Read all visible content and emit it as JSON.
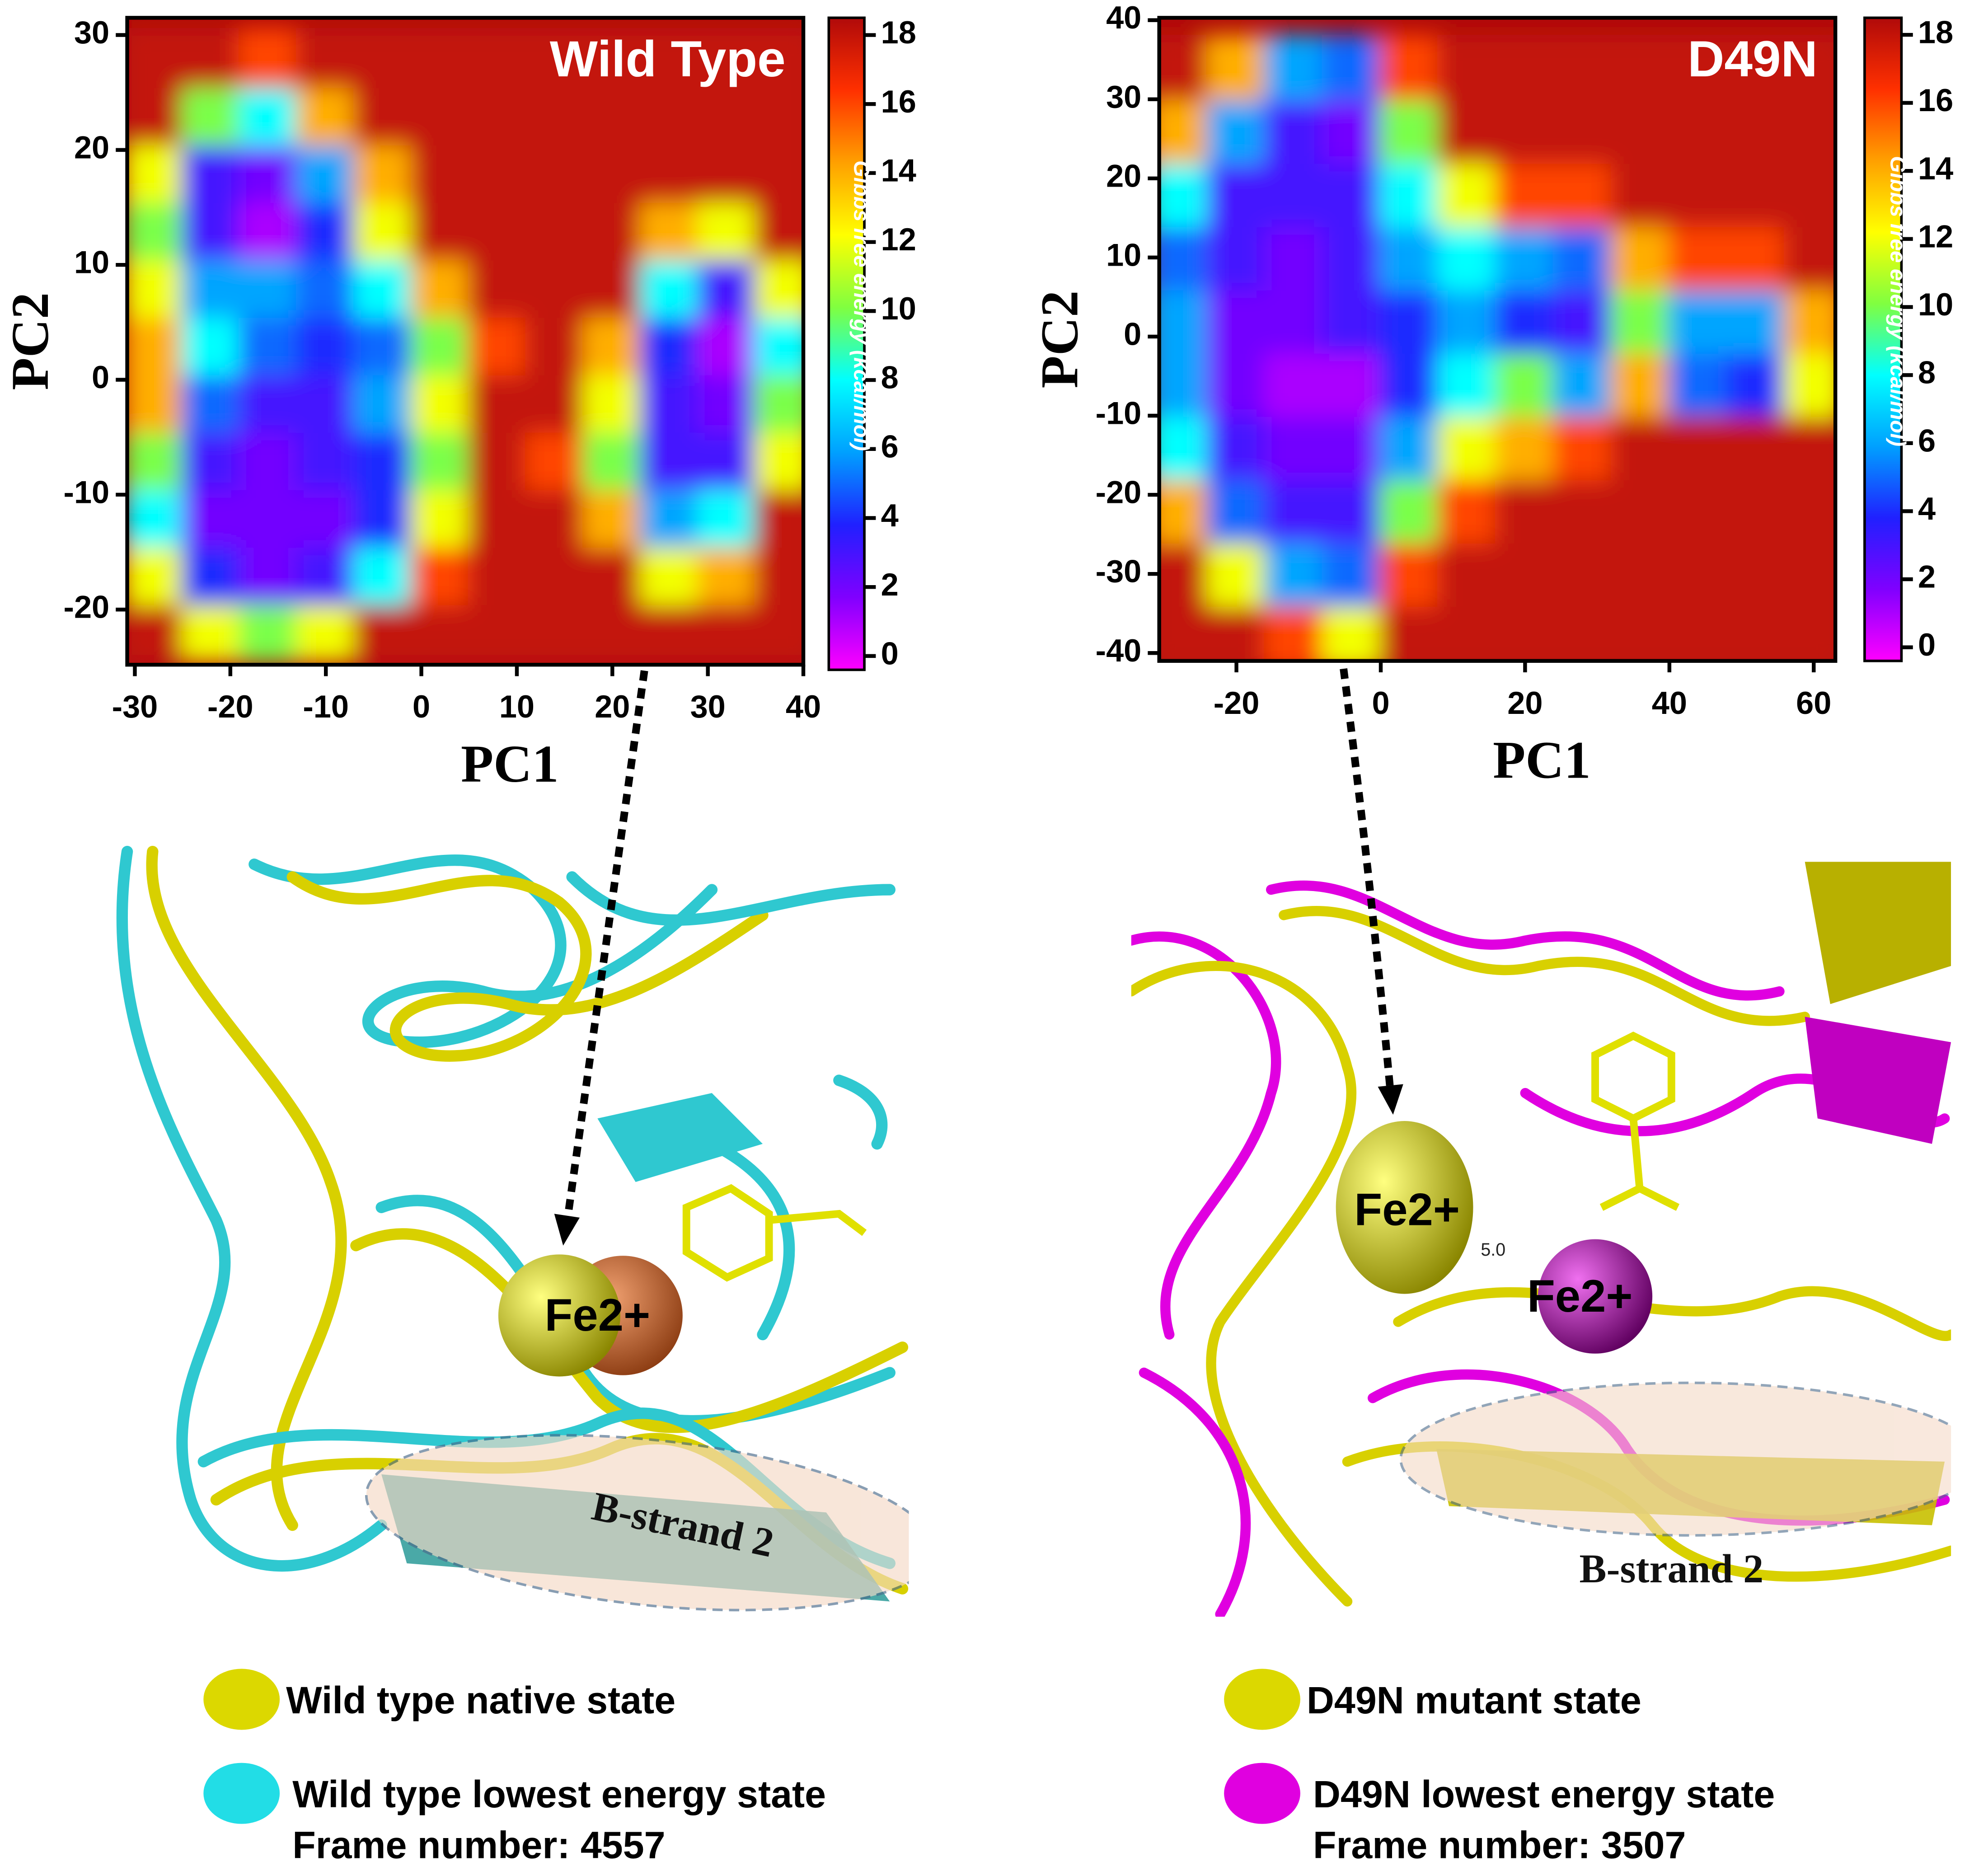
{
  "chart_data": [
    {
      "type": "heatmap",
      "title": "Wild Type",
      "xlabel": "PC1",
      "ylabel": "PC2",
      "colorbar_label": "Gibbs free energy (kcal/mol)",
      "xlim": [
        -30.8,
        40
      ],
      "ylim": [
        -24.8,
        31.5
      ],
      "xticks": [
        -30,
        -20,
        -10,
        0,
        10,
        20,
        30,
        40
      ],
      "yticks": [
        -20,
        -10,
        0,
        10,
        20,
        30
      ],
      "clim": [
        -0.4,
        18.5
      ],
      "cticks": [
        0,
        2,
        4,
        6,
        8,
        10,
        12,
        14,
        16,
        18
      ],
      "colormap": [
        "#ff00ff",
        "#8000ff",
        "#2020ff",
        "#00a0ff",
        "#00ffff",
        "#80ff40",
        "#ffff00",
        "#ffa000",
        "#ff3000",
        "#b00a0a"
      ],
      "x": [
        -28,
        -22,
        -16,
        -10,
        -4,
        2,
        8,
        14,
        20,
        26,
        32,
        38
      ],
      "y": [
        -22,
        -17,
        -12,
        -7,
        -2,
        3,
        8,
        13,
        18,
        23,
        28
      ],
      "z": [
        [
          18,
          12,
          10,
          12,
          18,
          18,
          18,
          18,
          18,
          18,
          18,
          18
        ],
        [
          12,
          4,
          2,
          3,
          8,
          16,
          18,
          18,
          18,
          12,
          14,
          18
        ],
        [
          8,
          2,
          2,
          2,
          4,
          12,
          18,
          18,
          14,
          6,
          8,
          18
        ],
        [
          10,
          3,
          2,
          3,
          4,
          10,
          18,
          16,
          10,
          3,
          3,
          12
        ],
        [
          14,
          5,
          3,
          3,
          6,
          12,
          18,
          18,
          12,
          3,
          2,
          10
        ],
        [
          14,
          8,
          5,
          4,
          5,
          10,
          16,
          18,
          14,
          4,
          1,
          8
        ],
        [
          12,
          6,
          6,
          5,
          8,
          14,
          18,
          18,
          18,
          8,
          3,
          12
        ],
        [
          10,
          3,
          1,
          4,
          12,
          18,
          18,
          18,
          18,
          14,
          12,
          18
        ],
        [
          12,
          3,
          2,
          6,
          14,
          18,
          18,
          18,
          18,
          18,
          18,
          18
        ],
        [
          18,
          10,
          8,
          14,
          18,
          18,
          18,
          18,
          18,
          18,
          18,
          18
        ],
        [
          18,
          18,
          16,
          18,
          18,
          18,
          18,
          18,
          18,
          18,
          18,
          18
        ]
      ]
    },
    {
      "type": "heatmap",
      "title": "D49N",
      "xlabel": "PC1",
      "ylabel": "PC2",
      "colorbar_label": "Gibbs free energy (kcal/mol)",
      "xlim": [
        -30.7,
        63
      ],
      "ylim": [
        -41,
        40.3
      ],
      "xticks": [
        -20,
        0,
        20,
        40,
        60
      ],
      "yticks": [
        -40,
        -30,
        -20,
        -10,
        0,
        10,
        20,
        30,
        40
      ],
      "clim": [
        -0.4,
        18.5
      ],
      "cticks": [
        0,
        2,
        4,
        6,
        8,
        10,
        12,
        14,
        16,
        18
      ],
      "colormap": [
        "#ff00ff",
        "#8000ff",
        "#2020ff",
        "#00a0ff",
        "#00ffff",
        "#80ff40",
        "#ffff00",
        "#ffa000",
        "#ff3000",
        "#b00a0a"
      ],
      "x": [
        -28,
        -20,
        -12,
        -4,
        4,
        12,
        20,
        28,
        36,
        44,
        52,
        60
      ],
      "y": [
        -38,
        -30,
        -22,
        -14,
        -6,
        2,
        10,
        18,
        26,
        34
      ],
      "z": [
        [
          18,
          18,
          16,
          12,
          18,
          18,
          18,
          18,
          18,
          18,
          18,
          18
        ],
        [
          18,
          12,
          6,
          5,
          16,
          18,
          18,
          18,
          18,
          18,
          18,
          18
        ],
        [
          14,
          5,
          3,
          3,
          10,
          16,
          18,
          18,
          18,
          18,
          18,
          18
        ],
        [
          8,
          3,
          2,
          2,
          6,
          12,
          14,
          16,
          18,
          18,
          18,
          18
        ],
        [
          6,
          2,
          1,
          1,
          4,
          8,
          10,
          6,
          14,
          5,
          4,
          12
        ],
        [
          6,
          2,
          2,
          3,
          4,
          6,
          4,
          3,
          10,
          6,
          6,
          14
        ],
        [
          5,
          3,
          2,
          3,
          6,
          8,
          6,
          5,
          14,
          16,
          16,
          18
        ],
        [
          8,
          3,
          3,
          3,
          8,
          12,
          16,
          16,
          18,
          18,
          18,
          18
        ],
        [
          14,
          6,
          3,
          2,
          10,
          18,
          18,
          18,
          18,
          18,
          18,
          18
        ],
        [
          18,
          14,
          6,
          5,
          16,
          18,
          18,
          18,
          18,
          18,
          18,
          18
        ]
      ]
    }
  ],
  "structures": {
    "left": {
      "ion": "Fe2+",
      "strand": "B-strand 2"
    },
    "right": {
      "ion_native": "Fe2+",
      "ion_mutant": "Fe2+",
      "distance": "5.0",
      "strand": "B-strand 2"
    }
  },
  "legend": {
    "left": [
      {
        "color": "#dcd800",
        "lines": [
          "Wild type native state"
        ]
      },
      {
        "color": "#22dde6",
        "lines": [
          "Wild type lowest energy state",
          "Frame number: 4557"
        ]
      }
    ],
    "right": [
      {
        "color": "#dcd800",
        "lines": [
          "D49N mutant state"
        ]
      },
      {
        "color": "#e000e0",
        "lines": [
          "D49N lowest energy state",
          "Frame number: 3507"
        ]
      }
    ]
  }
}
